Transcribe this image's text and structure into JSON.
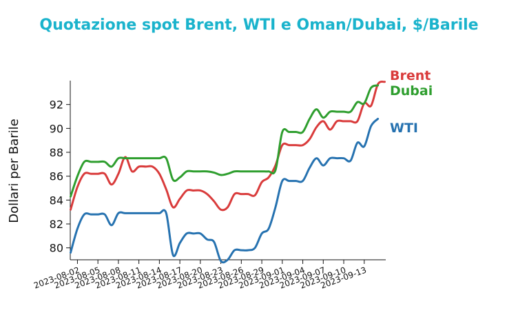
{
  "chart_data": {
    "type": "line",
    "title": "Quotazione spot Brent, WTI e Oman/Dubai, $/Barile",
    "xlabel": "",
    "ylabel": "Dollari per Barile",
    "ylim": [
      79,
      94
    ],
    "yticks": [
      80,
      82,
      84,
      86,
      88,
      90,
      92
    ],
    "xlim": [
      "2023-08-01",
      "2023-09-15"
    ],
    "xticks": [
      "2023-08-02",
      "2023-08-05",
      "2023-08-08",
      "2023-08-11",
      "2023-08-14",
      "2023-08-17",
      "2023-08-20",
      "2023-08-23",
      "2023-08-26",
      "2023-08-29",
      "2023-09-01",
      "2023-09-04",
      "2023-09-07",
      "2023-09-10",
      "2023-09-13"
    ],
    "grid": false,
    "legend": "labels at line ends (right)",
    "series": [
      {
        "name": "Brent",
        "color": "#d93b3b",
        "points": [
          [
            "2023-08-01",
            83.2
          ],
          [
            "2023-08-02",
            85.1
          ],
          [
            "2023-08-03",
            86.2
          ],
          [
            "2023-08-04",
            86.2
          ],
          [
            "2023-08-05",
            86.2
          ],
          [
            "2023-08-06",
            86.2
          ],
          [
            "2023-08-07",
            85.3
          ],
          [
            "2023-08-08",
            86.2
          ],
          [
            "2023-08-09",
            87.6
          ],
          [
            "2023-08-10",
            86.4
          ],
          [
            "2023-08-11",
            86.8
          ],
          [
            "2023-08-12",
            86.8
          ],
          [
            "2023-08-13",
            86.8
          ],
          [
            "2023-08-14",
            86.2
          ],
          [
            "2023-08-15",
            84.9
          ],
          [
            "2023-08-16",
            83.4
          ],
          [
            "2023-08-17",
            84.1
          ],
          [
            "2023-08-18",
            84.8
          ],
          [
            "2023-08-19",
            84.8
          ],
          [
            "2023-08-20",
            84.8
          ],
          [
            "2023-08-21",
            84.5
          ],
          [
            "2023-08-22",
            83.9
          ],
          [
            "2023-08-23",
            83.2
          ],
          [
            "2023-08-24",
            83.4
          ],
          [
            "2023-08-25",
            84.5
          ],
          [
            "2023-08-26",
            84.5
          ],
          [
            "2023-08-27",
            84.5
          ],
          [
            "2023-08-28",
            84.4
          ],
          [
            "2023-08-29",
            85.5
          ],
          [
            "2023-08-30",
            85.9
          ],
          [
            "2023-08-31",
            86.9
          ],
          [
            "2023-09-01",
            88.6
          ],
          [
            "2023-09-02",
            88.6
          ],
          [
            "2023-09-03",
            88.6
          ],
          [
            "2023-09-04",
            88.6
          ],
          [
            "2023-09-05",
            89.1
          ],
          [
            "2023-09-06",
            90.1
          ],
          [
            "2023-09-07",
            90.6
          ],
          [
            "2023-09-08",
            89.9
          ],
          [
            "2023-09-09",
            90.6
          ],
          [
            "2023-09-10",
            90.6
          ],
          [
            "2023-09-11",
            90.6
          ],
          [
            "2023-09-12",
            90.6
          ],
          [
            "2023-09-13",
            92.1
          ],
          [
            "2023-09-14",
            91.9
          ],
          [
            "2023-09-15",
            93.7
          ],
          [
            "2023-09-16",
            93.9
          ]
        ]
      },
      {
        "name": "WTI",
        "color": "#2672b0",
        "points": [
          [
            "2023-08-01",
            79.6
          ],
          [
            "2023-08-02",
            81.6
          ],
          [
            "2023-08-03",
            82.8
          ],
          [
            "2023-08-04",
            82.8
          ],
          [
            "2023-08-05",
            82.8
          ],
          [
            "2023-08-06",
            82.8
          ],
          [
            "2023-08-07",
            81.9
          ],
          [
            "2023-08-08",
            82.9
          ],
          [
            "2023-08-09",
            82.9
          ],
          [
            "2023-08-10",
            82.9
          ],
          [
            "2023-08-11",
            82.9
          ],
          [
            "2023-08-12",
            82.9
          ],
          [
            "2023-08-13",
            82.9
          ],
          [
            "2023-08-14",
            82.9
          ],
          [
            "2023-08-15",
            82.9
          ],
          [
            "2023-08-16",
            79.4
          ],
          [
            "2023-08-17",
            80.4
          ],
          [
            "2023-08-18",
            81.2
          ],
          [
            "2023-08-19",
            81.2
          ],
          [
            "2023-08-20",
            81.2
          ],
          [
            "2023-08-21",
            80.7
          ],
          [
            "2023-08-22",
            80.5
          ],
          [
            "2023-08-23",
            78.9
          ],
          [
            "2023-08-24",
            79.0
          ],
          [
            "2023-08-25",
            79.8
          ],
          [
            "2023-08-26",
            79.8
          ],
          [
            "2023-08-27",
            79.8
          ],
          [
            "2023-08-28",
            80.0
          ],
          [
            "2023-08-29",
            81.2
          ],
          [
            "2023-08-30",
            81.6
          ],
          [
            "2023-08-31",
            83.4
          ],
          [
            "2023-09-01",
            85.6
          ],
          [
            "2023-09-02",
            85.6
          ],
          [
            "2023-09-03",
            85.6
          ],
          [
            "2023-09-04",
            85.6
          ],
          [
            "2023-09-05",
            86.7
          ],
          [
            "2023-09-06",
            87.5
          ],
          [
            "2023-09-07",
            86.9
          ],
          [
            "2023-09-08",
            87.5
          ],
          [
            "2023-09-09",
            87.5
          ],
          [
            "2023-09-10",
            87.5
          ],
          [
            "2023-09-11",
            87.3
          ],
          [
            "2023-09-12",
            88.8
          ],
          [
            "2023-09-13",
            88.5
          ],
          [
            "2023-09-14",
            90.2
          ],
          [
            "2023-09-15",
            90.8
          ]
        ]
      },
      {
        "name": "Dubai",
        "color": "#2e9e2e",
        "points": [
          [
            "2023-08-01",
            84.3
          ],
          [
            "2023-08-02",
            86.0
          ],
          [
            "2023-08-03",
            87.2
          ],
          [
            "2023-08-04",
            87.2
          ],
          [
            "2023-08-05",
            87.2
          ],
          [
            "2023-08-06",
            87.2
          ],
          [
            "2023-08-07",
            86.8
          ],
          [
            "2023-08-08",
            87.5
          ],
          [
            "2023-08-09",
            87.5
          ],
          [
            "2023-08-10",
            87.5
          ],
          [
            "2023-08-11",
            87.5
          ],
          [
            "2023-08-12",
            87.5
          ],
          [
            "2023-08-13",
            87.5
          ],
          [
            "2023-08-14",
            87.5
          ],
          [
            "2023-08-15",
            87.5
          ],
          [
            "2023-08-16",
            85.7
          ],
          [
            "2023-08-17",
            85.9
          ],
          [
            "2023-08-18",
            86.4
          ],
          [
            "2023-08-19",
            86.4
          ],
          [
            "2023-08-20",
            86.4
          ],
          [
            "2023-08-21",
            86.4
          ],
          [
            "2023-08-22",
            86.3
          ],
          [
            "2023-08-23",
            86.1
          ],
          [
            "2023-08-24",
            86.2
          ],
          [
            "2023-08-25",
            86.4
          ],
          [
            "2023-08-26",
            86.4
          ],
          [
            "2023-08-27",
            86.4
          ],
          [
            "2023-08-28",
            86.4
          ],
          [
            "2023-08-29",
            86.4
          ],
          [
            "2023-08-30",
            86.4
          ],
          [
            "2023-08-31",
            86.5
          ],
          [
            "2023-09-01",
            89.7
          ],
          [
            "2023-09-02",
            89.7
          ],
          [
            "2023-09-03",
            89.7
          ],
          [
            "2023-09-04",
            89.7
          ],
          [
            "2023-09-05",
            90.8
          ],
          [
            "2023-09-06",
            91.6
          ],
          [
            "2023-09-07",
            90.9
          ],
          [
            "2023-09-08",
            91.4
          ],
          [
            "2023-09-09",
            91.4
          ],
          [
            "2023-09-10",
            91.4
          ],
          [
            "2023-09-11",
            91.4
          ],
          [
            "2023-09-12",
            92.2
          ],
          [
            "2023-09-13",
            92.1
          ],
          [
            "2023-09-14",
            93.4
          ],
          [
            "2023-09-15",
            93.6
          ]
        ]
      }
    ]
  }
}
